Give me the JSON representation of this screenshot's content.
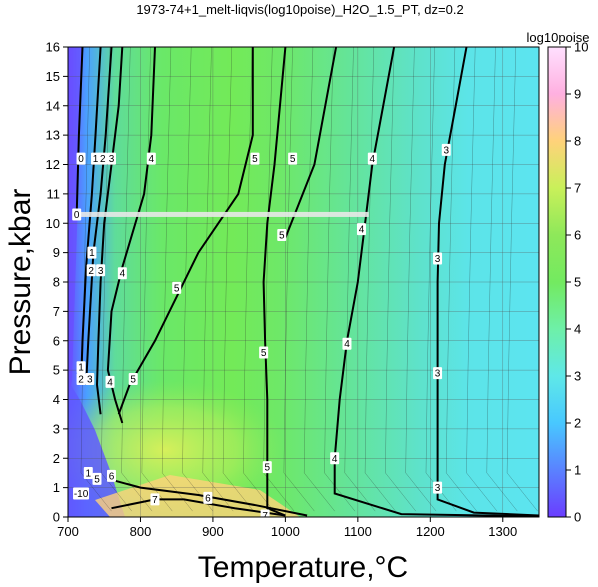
{
  "chart_data": {
    "type": "heatmap",
    "title": "1973-74+1_melt-liqvis(log10poise)_H2O_1.5_PT, dz=0.2",
    "xlabel": "Temperature,°C",
    "ylabel": "Pressure,kbar",
    "xlim": [
      700,
      1350
    ],
    "ylim": [
      0,
      16
    ],
    "xticks": [
      700,
      800,
      900,
      1000,
      1100,
      1200,
      1300
    ],
    "yticks": [
      0,
      1,
      2,
      3,
      4,
      5,
      6,
      7,
      8,
      9,
      10,
      11,
      12,
      13,
      14,
      15,
      16
    ],
    "grid": true,
    "colorbar": {
      "label": "log10poise",
      "range": [
        0,
        10
      ],
      "ticks": [
        0,
        1,
        2,
        3,
        4,
        5,
        6,
        7,
        8,
        9,
        10
      ],
      "colors": [
        "#6a3dff",
        "#5a82ff",
        "#48c8ff",
        "#5fe8e8",
        "#6ef0a8",
        "#73ea60",
        "#8ee85a",
        "#c9f05a",
        "#ffd27a",
        "#ffb0e0",
        "#ffe0ff"
      ]
    },
    "highlight_band": {
      "pressure": 10.3,
      "t_start": 710,
      "t_end": 1115
    },
    "contour_lines": [
      {
        "level": "3",
        "points": [
          [
            1250,
            16
          ],
          [
            1235,
            14
          ],
          [
            1220,
            12
          ],
          [
            1212,
            10
          ],
          [
            1210,
            8
          ],
          [
            1210,
            6
          ],
          [
            1210,
            4
          ],
          [
            1210,
            2
          ],
          [
            1210,
            0.6
          ],
          [
            1260,
            0.15
          ],
          [
            1350,
            0.05
          ]
        ]
      },
      {
        "level": "4",
        "points": [
          [
            1150,
            16
          ],
          [
            1135,
            14
          ],
          [
            1120,
            12
          ],
          [
            1110,
            10
          ],
          [
            1100,
            8
          ],
          [
            1085,
            6
          ],
          [
            1075,
            4
          ],
          [
            1068,
            2
          ],
          [
            1068,
            0.8
          ],
          [
            1160,
            0.1
          ],
          [
            1350,
            0.02
          ]
        ]
      },
      {
        "level": "5",
        "points": [
          [
            1000,
            16
          ],
          [
            985,
            12
          ],
          [
            975,
            10
          ],
          [
            970,
            8
          ],
          [
            972,
            6
          ],
          [
            975,
            4
          ],
          [
            975,
            2
          ],
          [
            975,
            0.3
          ],
          [
            1000,
            0.05
          ]
        ]
      },
      {
        "level": "5",
        "points": [
          [
            955,
            16
          ],
          [
            955,
            13
          ],
          [
            935,
            11
          ],
          [
            880,
            9
          ],
          [
            820,
            6
          ],
          [
            785,
            4.5
          ],
          [
            770,
            3.5
          ]
        ]
      },
      {
        "level": "5",
        "points": [
          [
            1070,
            16
          ],
          [
            1040,
            12
          ],
          [
            1000,
            9.5
          ]
        ]
      },
      {
        "level": "4",
        "points": [
          [
            820,
            16
          ],
          [
            815,
            13
          ],
          [
            805,
            11
          ],
          [
            775,
            8.5
          ],
          [
            760,
            7
          ],
          [
            755,
            5
          ],
          [
            765,
            4
          ],
          [
            775,
            3.2
          ]
        ]
      },
      {
        "level": "3",
        "points": [
          [
            775,
            16
          ],
          [
            770,
            14
          ],
          [
            760,
            12
          ],
          [
            750,
            10
          ],
          [
            745,
            8
          ],
          [
            742,
            6
          ],
          [
            740,
            4.5
          ],
          [
            745,
            3.5
          ]
        ]
      },
      {
        "level": "2",
        "points": [
          [
            760,
            16
          ],
          [
            752,
            13
          ],
          [
            745,
            11
          ],
          [
            735,
            9
          ],
          [
            728,
            6
          ],
          [
            725,
            4.5
          ]
        ]
      },
      {
        "level": "1",
        "points": [
          [
            745,
            16
          ],
          [
            738,
            13
          ],
          [
            733,
            11
          ],
          [
            725,
            8.5
          ],
          [
            720,
            6
          ],
          [
            718,
            4.5
          ]
        ]
      },
      {
        "level": "0",
        "points": [
          [
            720,
            16
          ],
          [
            715,
            13
          ],
          [
            712,
            10.3
          ]
        ]
      },
      {
        "level": "7",
        "points": [
          [
            760,
            0.3
          ],
          [
            820,
            0.6
          ],
          [
            860,
            0.6
          ],
          [
            930,
            0.3
          ],
          [
            1000,
            0.05
          ]
        ]
      },
      {
        "level": "6",
        "points": [
          [
            755,
            1.3
          ],
          [
            800,
            1.0
          ],
          [
            880,
            0.75
          ],
          [
            960,
            0.4
          ],
          [
            1030,
            0.05
          ]
        ]
      }
    ],
    "contour_labels": [
      {
        "text": "0",
        "t": 718,
        "p": 12.2
      },
      {
        "text": "1",
        "t": 738,
        "p": 12.2
      },
      {
        "text": "2",
        "t": 748,
        "p": 12.2
      },
      {
        "text": "3",
        "t": 760,
        "p": 12.2
      },
      {
        "text": "4",
        "t": 815,
        "p": 12.2
      },
      {
        "text": "5",
        "t": 958,
        "p": 12.2
      },
      {
        "text": "5",
        "t": 1010,
        "p": 12.2
      },
      {
        "text": "4",
        "t": 1120,
        "p": 12.2
      },
      {
        "text": "3",
        "t": 1222,
        "p": 12.5
      },
      {
        "text": "0",
        "t": 712,
        "p": 10.3
      },
      {
        "text": "5",
        "t": 995,
        "p": 9.6
      },
      {
        "text": "4",
        "t": 1105,
        "p": 9.8
      },
      {
        "text": "1",
        "t": 733,
        "p": 9.0
      },
      {
        "text": "2",
        "t": 732,
        "p": 8.4
      },
      {
        "text": "3",
        "t": 745,
        "p": 8.4
      },
      {
        "text": "4",
        "t": 775,
        "p": 8.3
      },
      {
        "text": "5",
        "t": 850,
        "p": 7.8
      },
      {
        "text": "3",
        "t": 1210,
        "p": 8.8
      },
      {
        "text": "5",
        "t": 970,
        "p": 5.6
      },
      {
        "text": "4",
        "t": 1085,
        "p": 5.9
      },
      {
        "text": "1",
        "t": 718,
        "p": 5.1
      },
      {
        "text": "2",
        "t": 718,
        "p": 4.7
      },
      {
        "text": "3",
        "t": 730,
        "p": 4.7
      },
      {
        "text": "4",
        "t": 758,
        "p": 4.6
      },
      {
        "text": "5",
        "t": 790,
        "p": 4.7
      },
      {
        "text": "3",
        "t": 1210,
        "p": 4.9
      },
      {
        "text": "5",
        "t": 975,
        "p": 1.7
      },
      {
        "text": "4",
        "t": 1068,
        "p": 2.0
      },
      {
        "text": "1",
        "t": 728,
        "p": 1.5
      },
      {
        "text": "5",
        "t": 740,
        "p": 1.3
      },
      {
        "text": "6",
        "t": 760,
        "p": 1.4
      },
      {
        "text": "3",
        "t": 1210,
        "p": 1.0
      },
      {
        "text": "-10",
        "t": 718,
        "p": 0.8
      },
      {
        "text": "6",
        "t": 893,
        "p": 0.65
      },
      {
        "text": "7",
        "t": 820,
        "p": 0.6
      },
      {
        "text": "7",
        "t": 972,
        "p": 0.05
      }
    ]
  }
}
